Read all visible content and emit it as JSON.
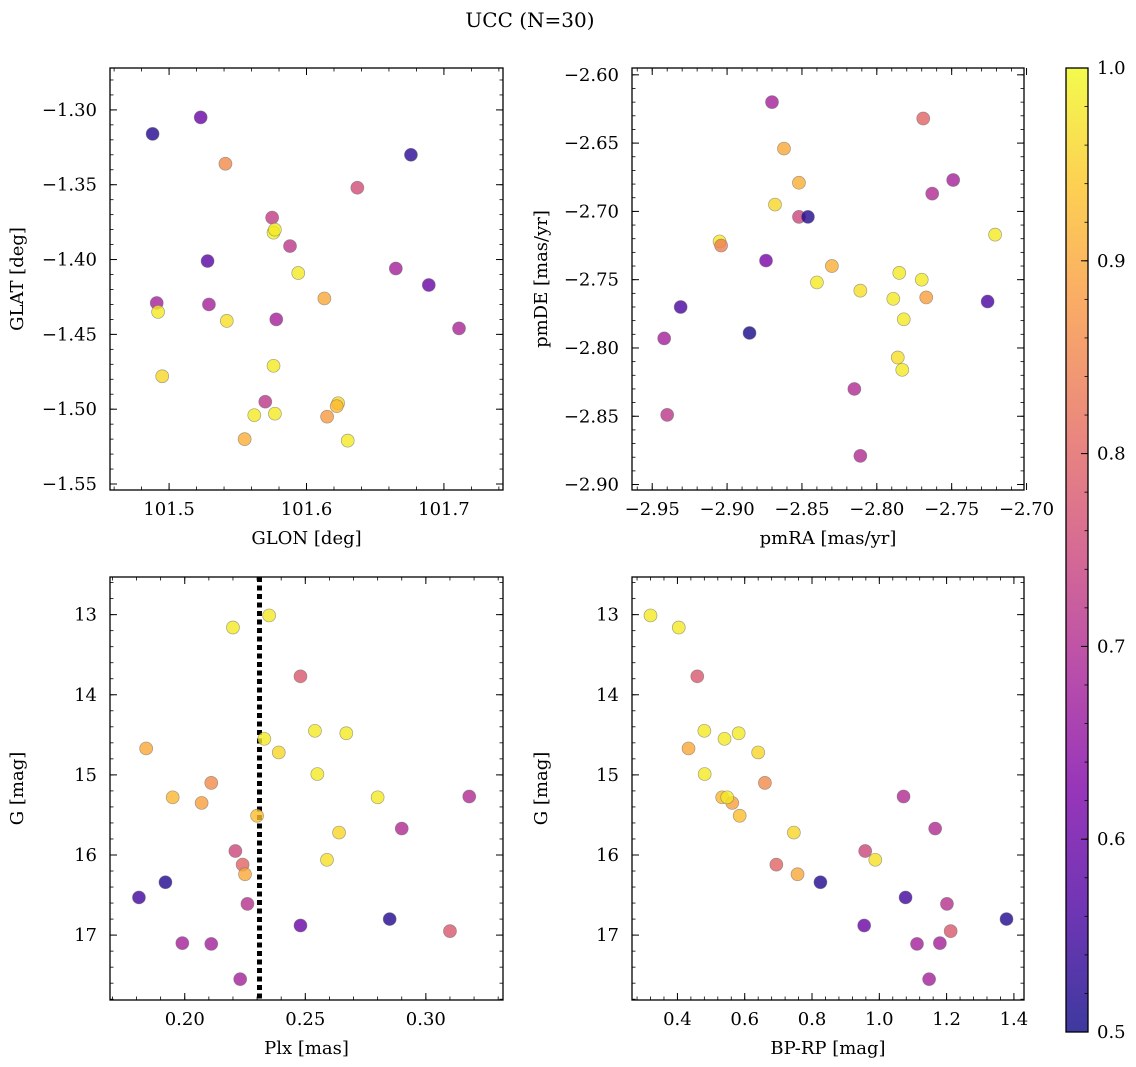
{
  "figure": {
    "title": "UCC (N=30)"
  },
  "colorbar": {
    "min": 0.5,
    "max": 1.0,
    "ticks": [
      0.5,
      0.6,
      0.7,
      0.8,
      0.9,
      1.0
    ],
    "tick_labels": [
      "0.5",
      "0.6",
      "0.7",
      "0.8",
      "0.9",
      "1.0"
    ],
    "colormap": "plasma",
    "alpha": 0.8
  },
  "chart_data": [
    {
      "type": "scatter",
      "xlabel": "GLON [deg]",
      "ylabel": "GLAT [deg]",
      "xlim": [
        101.457,
        101.743
      ],
      "ylim": [
        -1.554,
        -1.272
      ],
      "y_inverted": false,
      "xticks": [
        101.5,
        101.6,
        101.7
      ],
      "xtick_labels": [
        "101.5",
        "101.6",
        "101.7"
      ],
      "yticks": [
        -1.55,
        -1.5,
        -1.45,
        -1.4,
        -1.35,
        -1.3
      ],
      "ytick_labels": [
        "−1.55",
        "−1.50",
        "−1.45",
        "−1.40",
        "−1.35",
        "−1.30"
      ],
      "points": [
        {
          "x": 101.488,
          "y": -1.316,
          "c": 0.52
        },
        {
          "x": 101.523,
          "y": -1.305,
          "c": 0.6
        },
        {
          "x": 101.541,
          "y": -1.336,
          "c": 0.86
        },
        {
          "x": 101.676,
          "y": -1.33,
          "c": 0.53
        },
        {
          "x": 101.637,
          "y": -1.352,
          "c": 0.76
        },
        {
          "x": 101.575,
          "y": -1.372,
          "c": 0.73
        },
        {
          "x": 101.576,
          "y": -1.382,
          "c": 0.99
        },
        {
          "x": 101.577,
          "y": -1.38,
          "c": 0.98
        },
        {
          "x": 101.588,
          "y": -1.391,
          "c": 0.72
        },
        {
          "x": 101.528,
          "y": -1.401,
          "c": 0.58
        },
        {
          "x": 101.594,
          "y": -1.409,
          "c": 0.98
        },
        {
          "x": 101.665,
          "y": -1.406,
          "c": 0.68
        },
        {
          "x": 101.689,
          "y": -1.417,
          "c": 0.6
        },
        {
          "x": 101.613,
          "y": -1.426,
          "c": 0.9
        },
        {
          "x": 101.491,
          "y": -1.429,
          "c": 0.68
        },
        {
          "x": 101.529,
          "y": -1.43,
          "c": 0.68
        },
        {
          "x": 101.492,
          "y": -1.435,
          "c": 0.98
        },
        {
          "x": 101.542,
          "y": -1.441,
          "c": 0.97
        },
        {
          "x": 101.578,
          "y": -1.44,
          "c": 0.68
        },
        {
          "x": 101.711,
          "y": -1.446,
          "c": 0.69
        },
        {
          "x": 101.576,
          "y": -1.471,
          "c": 0.98
        },
        {
          "x": 101.495,
          "y": -1.478,
          "c": 0.96
        },
        {
          "x": 101.57,
          "y": -1.495,
          "c": 0.72
        },
        {
          "x": 101.623,
          "y": -1.496,
          "c": 0.96
        },
        {
          "x": 101.622,
          "y": -1.498,
          "c": 0.92
        },
        {
          "x": 101.562,
          "y": -1.504,
          "c": 0.98
        },
        {
          "x": 101.577,
          "y": -1.503,
          "c": 0.98
        },
        {
          "x": 101.615,
          "y": -1.505,
          "c": 0.88
        },
        {
          "x": 101.555,
          "y": -1.52,
          "c": 0.91
        },
        {
          "x": 101.63,
          "y": -1.521,
          "c": 0.98
        }
      ]
    },
    {
      "type": "scatter",
      "xlabel": "pmRA [mas/yr]",
      "ylabel": "pmDE [mas/yr]",
      "xlim": [
        -2.9635,
        -2.7017
      ],
      "ylim": [
        -2.904,
        -2.595
      ],
      "y_inverted": false,
      "xticks": [
        -2.95,
        -2.9,
        -2.85,
        -2.8,
        -2.75,
        -2.7
      ],
      "xtick_labels": [
        "−2.95",
        "−2.90",
        "−2.85",
        "−2.80",
        "−2.75",
        "−2.70"
      ],
      "yticks": [
        -2.9,
        -2.85,
        -2.8,
        -2.75,
        -2.7,
        -2.65,
        -2.6
      ],
      "ytick_labels": [
        "−2.90",
        "−2.85",
        "−2.80",
        "−2.75",
        "−2.70",
        "−2.65",
        "−2.60"
      ],
      "points": [
        {
          "x": -2.87,
          "y": -2.62,
          "c": 0.68
        },
        {
          "x": -2.769,
          "y": -2.632,
          "c": 0.8
        },
        {
          "x": -2.862,
          "y": -2.654,
          "c": 0.9
        },
        {
          "x": -2.852,
          "y": -2.679,
          "c": 0.91
        },
        {
          "x": -2.749,
          "y": -2.677,
          "c": 0.68
        },
        {
          "x": -2.763,
          "y": -2.687,
          "c": 0.7
        },
        {
          "x": -2.868,
          "y": -2.695,
          "c": 0.96
        },
        {
          "x": -2.852,
          "y": -2.704,
          "c": 0.75
        },
        {
          "x": -2.846,
          "y": -2.704,
          "c": 0.52
        },
        {
          "x": -2.905,
          "y": -2.722,
          "c": 0.98
        },
        {
          "x": -2.904,
          "y": -2.725,
          "c": 0.84
        },
        {
          "x": -2.721,
          "y": -2.717,
          "c": 0.98
        },
        {
          "x": -2.874,
          "y": -2.736,
          "c": 0.62
        },
        {
          "x": -2.83,
          "y": -2.74,
          "c": 0.91
        },
        {
          "x": -2.785,
          "y": -2.745,
          "c": 0.98
        },
        {
          "x": -2.77,
          "y": -2.75,
          "c": 0.98
        },
        {
          "x": -2.84,
          "y": -2.752,
          "c": 0.98
        },
        {
          "x": -2.811,
          "y": -2.758,
          "c": 0.97
        },
        {
          "x": -2.767,
          "y": -2.763,
          "c": 0.89
        },
        {
          "x": -2.789,
          "y": -2.764,
          "c": 0.98
        },
        {
          "x": -2.726,
          "y": -2.766,
          "c": 0.56
        },
        {
          "x": -2.931,
          "y": -2.77,
          "c": 0.56
        },
        {
          "x": -2.782,
          "y": -2.779,
          "c": 0.98
        },
        {
          "x": -2.885,
          "y": -2.789,
          "c": 0.51
        },
        {
          "x": -2.942,
          "y": -2.793,
          "c": 0.68
        },
        {
          "x": -2.786,
          "y": -2.807,
          "c": 0.97
        },
        {
          "x": -2.783,
          "y": -2.816,
          "c": 0.98
        },
        {
          "x": -2.815,
          "y": -2.83,
          "c": 0.7
        },
        {
          "x": -2.94,
          "y": -2.849,
          "c": 0.72
        },
        {
          "x": -2.811,
          "y": -2.879,
          "c": 0.7
        }
      ]
    },
    {
      "type": "scatter",
      "xlabel": "Plx [mas]",
      "ylabel": "G [mag]",
      "xlim": [
        0.169,
        0.332
      ],
      "ylim": [
        17.81,
        12.53
      ],
      "y_inverted": true,
      "xticks": [
        0.2,
        0.25,
        0.3
      ],
      "xtick_labels": [
        "0.20",
        "0.25",
        "0.30"
      ],
      "yticks": [
        13,
        14,
        15,
        16,
        17
      ],
      "ytick_labels": [
        "13",
        "14",
        "15",
        "16",
        "17"
      ],
      "vline": {
        "x": 0.231,
        "style": "dotted"
      },
      "points": [
        {
          "x": 0.235,
          "y": 13.01,
          "c": 0.98
        },
        {
          "x": 0.22,
          "y": 13.16,
          "c": 0.98
        },
        {
          "x": 0.248,
          "y": 13.77,
          "c": 0.78
        },
        {
          "x": 0.254,
          "y": 14.45,
          "c": 0.98
        },
        {
          "x": 0.267,
          "y": 14.48,
          "c": 0.98
        },
        {
          "x": 0.233,
          "y": 14.55,
          "c": 0.98
        },
        {
          "x": 0.239,
          "y": 14.72,
          "c": 0.96
        },
        {
          "x": 0.184,
          "y": 14.67,
          "c": 0.9
        },
        {
          "x": 0.255,
          "y": 14.99,
          "c": 0.98
        },
        {
          "x": 0.211,
          "y": 15.1,
          "c": 0.86
        },
        {
          "x": 0.195,
          "y": 15.28,
          "c": 0.92
        },
        {
          "x": 0.207,
          "y": 15.35,
          "c": 0.89
        },
        {
          "x": 0.28,
          "y": 15.28,
          "c": 0.98
        },
        {
          "x": 0.318,
          "y": 15.27,
          "c": 0.7
        },
        {
          "x": 0.23,
          "y": 15.51,
          "c": 0.93
        },
        {
          "x": 0.29,
          "y": 15.67,
          "c": 0.7
        },
        {
          "x": 0.264,
          "y": 15.72,
          "c": 0.96
        },
        {
          "x": 0.221,
          "y": 15.95,
          "c": 0.75
        },
        {
          "x": 0.259,
          "y": 16.06,
          "c": 0.97
        },
        {
          "x": 0.224,
          "y": 16.12,
          "c": 0.8
        },
        {
          "x": 0.225,
          "y": 16.24,
          "c": 0.9
        },
        {
          "x": 0.192,
          "y": 16.34,
          "c": 0.52
        },
        {
          "x": 0.181,
          "y": 16.53,
          "c": 0.55
        },
        {
          "x": 0.226,
          "y": 16.61,
          "c": 0.71
        },
        {
          "x": 0.285,
          "y": 16.8,
          "c": 0.52
        },
        {
          "x": 0.248,
          "y": 16.88,
          "c": 0.6
        },
        {
          "x": 0.31,
          "y": 16.95,
          "c": 0.78
        },
        {
          "x": 0.199,
          "y": 17.1,
          "c": 0.68
        },
        {
          "x": 0.211,
          "y": 17.11,
          "c": 0.68
        },
        {
          "x": 0.223,
          "y": 17.55,
          "c": 0.68
        }
      ]
    },
    {
      "type": "scatter",
      "xlabel": "BP-RP [mag]",
      "ylabel": "G [mag]",
      "xlim": [
        0.265,
        1.43
      ],
      "ylim": [
        17.81,
        12.53
      ],
      "y_inverted": true,
      "xticks": [
        0.4,
        0.6,
        0.8,
        1.0,
        1.2,
        1.4
      ],
      "xtick_labels": [
        "0.4",
        "0.6",
        "0.8",
        "1.0",
        "1.2",
        "1.4"
      ],
      "yticks": [
        13,
        14,
        15,
        16,
        17
      ],
      "ytick_labels": [
        "13",
        "14",
        "15",
        "16",
        "17"
      ],
      "points": [
        {
          "x": 0.32,
          "y": 13.01,
          "c": 0.98
        },
        {
          "x": 0.404,
          "y": 13.16,
          "c": 0.98
        },
        {
          "x": 0.459,
          "y": 13.77,
          "c": 0.78
        },
        {
          "x": 0.48,
          "y": 14.45,
          "c": 0.98
        },
        {
          "x": 0.582,
          "y": 14.48,
          "c": 0.98
        },
        {
          "x": 0.54,
          "y": 14.55,
          "c": 0.98
        },
        {
          "x": 0.64,
          "y": 14.72,
          "c": 0.96
        },
        {
          "x": 0.433,
          "y": 14.67,
          "c": 0.9
        },
        {
          "x": 0.481,
          "y": 14.99,
          "c": 0.98
        },
        {
          "x": 0.66,
          "y": 15.1,
          "c": 0.86
        },
        {
          "x": 0.533,
          "y": 15.28,
          "c": 0.92
        },
        {
          "x": 0.563,
          "y": 15.35,
          "c": 0.89
        },
        {
          "x": 0.548,
          "y": 15.28,
          "c": 0.98
        },
        {
          "x": 1.072,
          "y": 15.27,
          "c": 0.7
        },
        {
          "x": 0.585,
          "y": 15.51,
          "c": 0.93
        },
        {
          "x": 1.166,
          "y": 15.67,
          "c": 0.7
        },
        {
          "x": 0.746,
          "y": 15.72,
          "c": 0.96
        },
        {
          "x": 0.958,
          "y": 15.95,
          "c": 0.75
        },
        {
          "x": 0.988,
          "y": 16.06,
          "c": 0.97
        },
        {
          "x": 0.694,
          "y": 16.12,
          "c": 0.8
        },
        {
          "x": 0.757,
          "y": 16.24,
          "c": 0.9
        },
        {
          "x": 0.825,
          "y": 16.34,
          "c": 0.52
        },
        {
          "x": 1.078,
          "y": 16.53,
          "c": 0.55
        },
        {
          "x": 1.201,
          "y": 16.61,
          "c": 0.71
        },
        {
          "x": 1.378,
          "y": 16.8,
          "c": 0.52
        },
        {
          "x": 0.955,
          "y": 16.88,
          "c": 0.6
        },
        {
          "x": 1.212,
          "y": 16.95,
          "c": 0.78
        },
        {
          "x": 1.18,
          "y": 17.1,
          "c": 0.68
        },
        {
          "x": 1.112,
          "y": 17.11,
          "c": 0.68
        },
        {
          "x": 1.148,
          "y": 17.55,
          "c": 0.68
        }
      ]
    }
  ]
}
